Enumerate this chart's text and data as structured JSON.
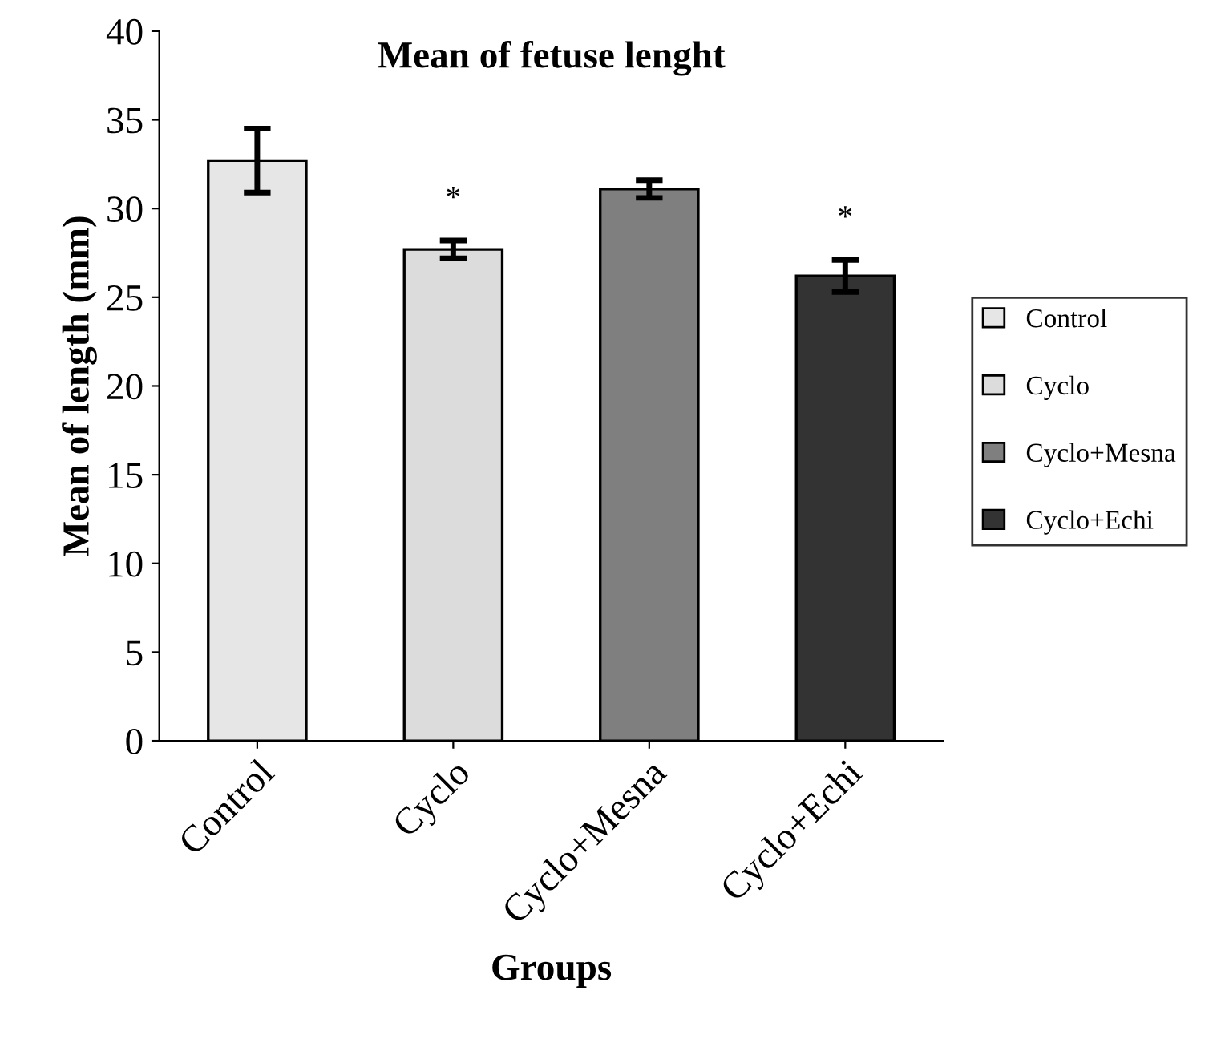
{
  "chart_data": {
    "type": "bar",
    "title": "Mean of fetuse lenght",
    "xlabel": "Groups",
    "ylabel": "Mean of length (mm)",
    "categories": [
      "Control",
      "Cyclo",
      "Cyclo+Mesna",
      "Cyclo+Echi"
    ],
    "series": [
      {
        "name": "Control",
        "color": "#e6e6e6",
        "values": [
          32.7,
          null,
          null,
          null
        ],
        "errors": [
          1.8,
          null,
          null,
          null
        ]
      },
      {
        "name": "Cyclo",
        "color": "#dcdcdc",
        "values": [
          null,
          27.7,
          null,
          null
        ],
        "errors": [
          null,
          0.5,
          null,
          null
        ],
        "value_labels": [
          null,
          "*",
          null,
          null
        ]
      },
      {
        "name": "Cyclo+Mesna",
        "color": "#7f7f7f",
        "values": [
          null,
          null,
          31.1,
          null
        ],
        "errors": [
          null,
          null,
          0.5,
          null
        ]
      },
      {
        "name": "Cyclo+Echi",
        "color": "#333333",
        "values": [
          null,
          null,
          null,
          26.2
        ],
        "errors": [
          null,
          null,
          null,
          0.9
        ],
        "value_labels": [
          null,
          null,
          null,
          "*"
        ]
      }
    ],
    "ylim": [
      0,
      40
    ],
    "yticks": [
      0,
      5,
      10,
      15,
      20,
      25,
      30,
      35,
      40
    ],
    "grid": false,
    "legend": "right"
  }
}
